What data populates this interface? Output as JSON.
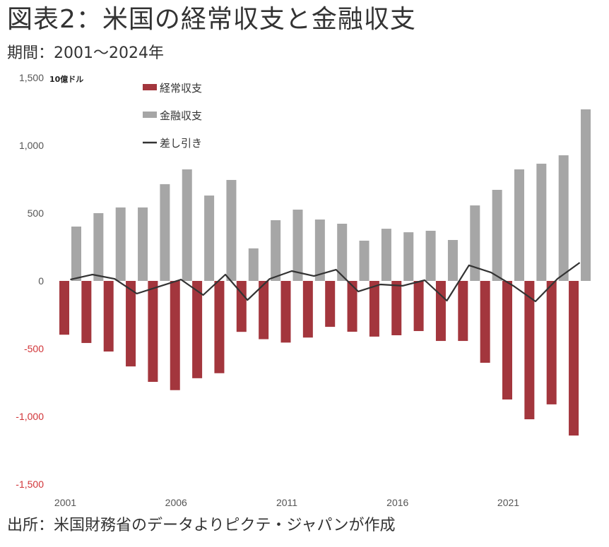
{
  "header": {
    "title": "図表2：米国の経常収支と金融収支",
    "subtitle": "期間：2001～2024年"
  },
  "footer": {
    "source": "出所：米国財務省のデータよりピクテ・ジャパンが作成"
  },
  "chart_data": {
    "type": "bar",
    "title": "米国の経常収支と金融収支",
    "unit_label": "10億ドル",
    "xlabel": "",
    "ylabel": "10億ドル",
    "ylim": [
      -1500,
      1500
    ],
    "yticks": [
      1500,
      1000,
      500,
      0,
      -500,
      -1000,
      -1500
    ],
    "ytick_labels": [
      "1,500",
      "1,000",
      "500",
      "0",
      "-500",
      "-1,000",
      "-1,500"
    ],
    "negative_tick_color": "#d13438",
    "categories": [
      "2001",
      "2002",
      "2003",
      "2004",
      "2005",
      "2006",
      "2007",
      "2008",
      "2009",
      "2010",
      "2011",
      "2012",
      "2013",
      "2014",
      "2015",
      "2016",
      "2017",
      "2018",
      "2019",
      "2020",
      "2021",
      "2022",
      "2023",
      "2024"
    ],
    "xtick_labels": [
      "2001",
      "2006",
      "2011",
      "2016",
      "2021"
    ],
    "grid": false,
    "legend_position": "top-center",
    "series": [
      {
        "name": "経常収支",
        "type": "bar",
        "color": "#a3363d",
        "values": [
          -397,
          -458,
          -521,
          -631,
          -745,
          -806,
          -718,
          -681,
          -376,
          -430,
          -455,
          -418,
          -339,
          -375,
          -411,
          -401,
          -370,
          -443,
          -443,
          -604,
          -875,
          -1021,
          -911,
          -1141
        ]
      },
      {
        "name": "金融収支",
        "type": "bar",
        "color": "#a6a6a6",
        "values": [
          401,
          500,
          542,
          542,
          714,
          823,
          630,
          745,
          240,
          448,
          526,
          453,
          422,
          297,
          385,
          359,
          370,
          302,
          557,
          672,
          823,
          865,
          927,
          1266
        ]
      },
      {
        "name": "差し引き",
        "type": "line",
        "color": "#333333",
        "values": [
          10,
          47,
          15,
          -94,
          -42,
          10,
          -104,
          47,
          -141,
          15,
          73,
          36,
          83,
          -78,
          -26,
          -36,
          5,
          -146,
          115,
          62,
          -36,
          -151,
          16,
          135
        ]
      }
    ]
  }
}
